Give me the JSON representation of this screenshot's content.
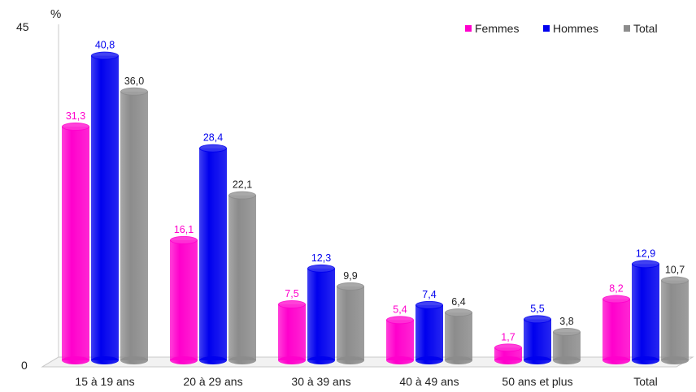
{
  "chart_data": {
    "type": "bar",
    "title": "",
    "xlabel": "",
    "ylabel": "%",
    "ylim": [
      0,
      45
    ],
    "y_ticks": [
      "0",
      "45"
    ],
    "categories": [
      "15 à 19 ans",
      "20 à 29 ans",
      "30 à 39 ans",
      "40 à 49 ans",
      "50 ans et plus",
      "Total"
    ],
    "series": [
      {
        "name": "Femmes",
        "color": "#ff00cc",
        "values": [
          31.3,
          16.1,
          7.5,
          5.4,
          1.7,
          8.2
        ],
        "labels": [
          "31,3",
          "16,1",
          "7,5",
          "5,4",
          "1,7",
          "8,2"
        ]
      },
      {
        "name": "Hommes",
        "color": "#0000ee",
        "values": [
          40.8,
          28.4,
          12.3,
          7.4,
          5.5,
          12.9
        ],
        "labels": [
          "40,8",
          "28,4",
          "12,3",
          "7,4",
          "5,5",
          "12,9"
        ]
      },
      {
        "name": "Total",
        "color": "#8c8c8c",
        "values": [
          36.0,
          22.1,
          9.9,
          6.4,
          3.8,
          10.7
        ],
        "labels": [
          "36,0",
          "22,1",
          "9,9",
          "6,4",
          "3,8",
          "10,7"
        ]
      }
    ],
    "legend_position": "top-right",
    "grid": false,
    "style": "3d-cylinder"
  }
}
